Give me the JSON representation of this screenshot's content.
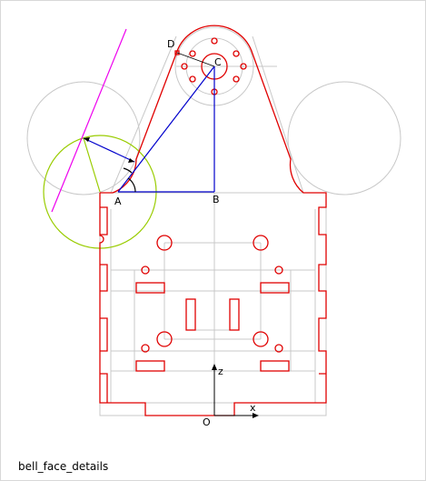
{
  "caption": "bell_face_details",
  "labels": {
    "A": "A",
    "B": "B",
    "C": "C",
    "D": "D",
    "O": "O",
    "x": "x",
    "z": "z"
  },
  "colors": {
    "outline": "#e00000",
    "triangle": "#0000cc",
    "tangent_circle": "#99cc00",
    "tangent_line": "#ee00ee",
    "construction": "#c8c8c8",
    "axis": "#000000"
  }
}
